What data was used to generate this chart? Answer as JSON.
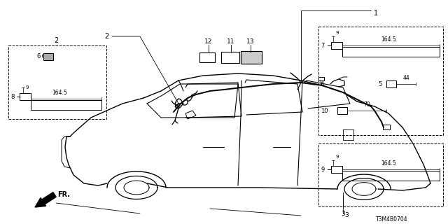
{
  "bg_color": "#ffffff",
  "diagram_code": "T3M4B0704",
  "fig_w": 6.4,
  "fig_h": 3.2,
  "dpi": 100
}
